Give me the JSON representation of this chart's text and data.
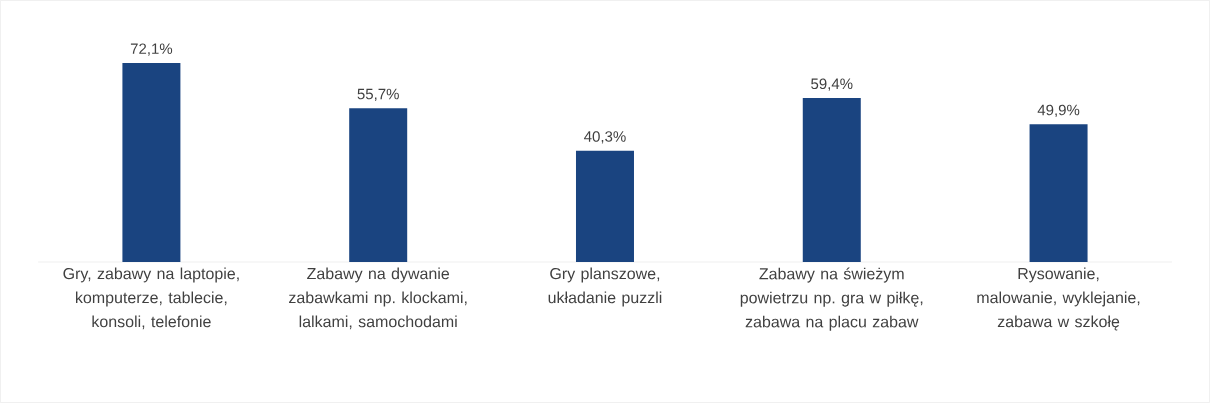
{
  "chart_data": {
    "type": "bar",
    "categories": [
      "Gry, zabawy na laptopie, komputerze, tablecie, konsoli, telefonie",
      "Zabawy na dywanie zabawkami np. klockami, lalkami, samochodami",
      "Gry planszowe, układanie puzzli",
      "Zabawy na świeżym powietrzu np. gra w piłkę, zabawa na placu zabaw",
      "Rysowanie, malowanie, wyklejanie, zabawa w szkołę"
    ],
    "values": [
      72.1,
      55.7,
      40.3,
      59.4,
      49.9
    ],
    "value_labels": [
      "72,1%",
      "55,7%",
      "40,3%",
      "59,4%",
      "49,9%"
    ],
    "color": "#1a4480"
  }
}
